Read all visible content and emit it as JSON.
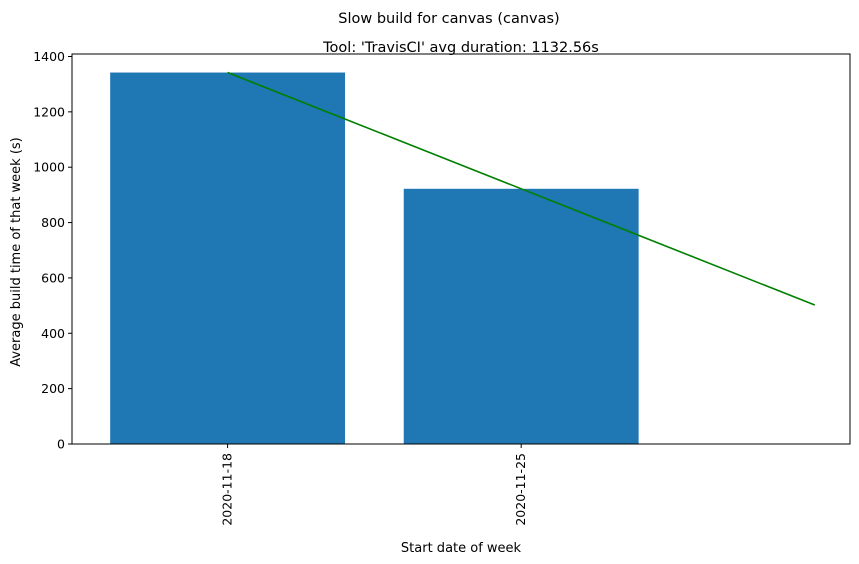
{
  "chart_data": {
    "type": "bar",
    "suptitle": "Slow build for canvas (canvas)",
    "title": "Tool: 'TravisCI' avg duration: 1132.56s",
    "xlabel": "Start date of week",
    "ylabel": "Average build time of that week (s)",
    "categories": [
      "2020-11-18",
      "2020-11-25"
    ],
    "values": [
      1342,
      922
    ],
    "bar_color": "#1f77b4",
    "trend_line": {
      "color": "#008000",
      "x": [
        0,
        2
      ],
      "y": [
        1342,
        502
      ]
    },
    "xlim": [
      -0.53,
      2.12
    ],
    "ylim": [
      0,
      1409
    ],
    "yticks": [
      0,
      200,
      400,
      600,
      800,
      1000,
      1200,
      1400
    ],
    "grid": false,
    "legend": "none"
  }
}
